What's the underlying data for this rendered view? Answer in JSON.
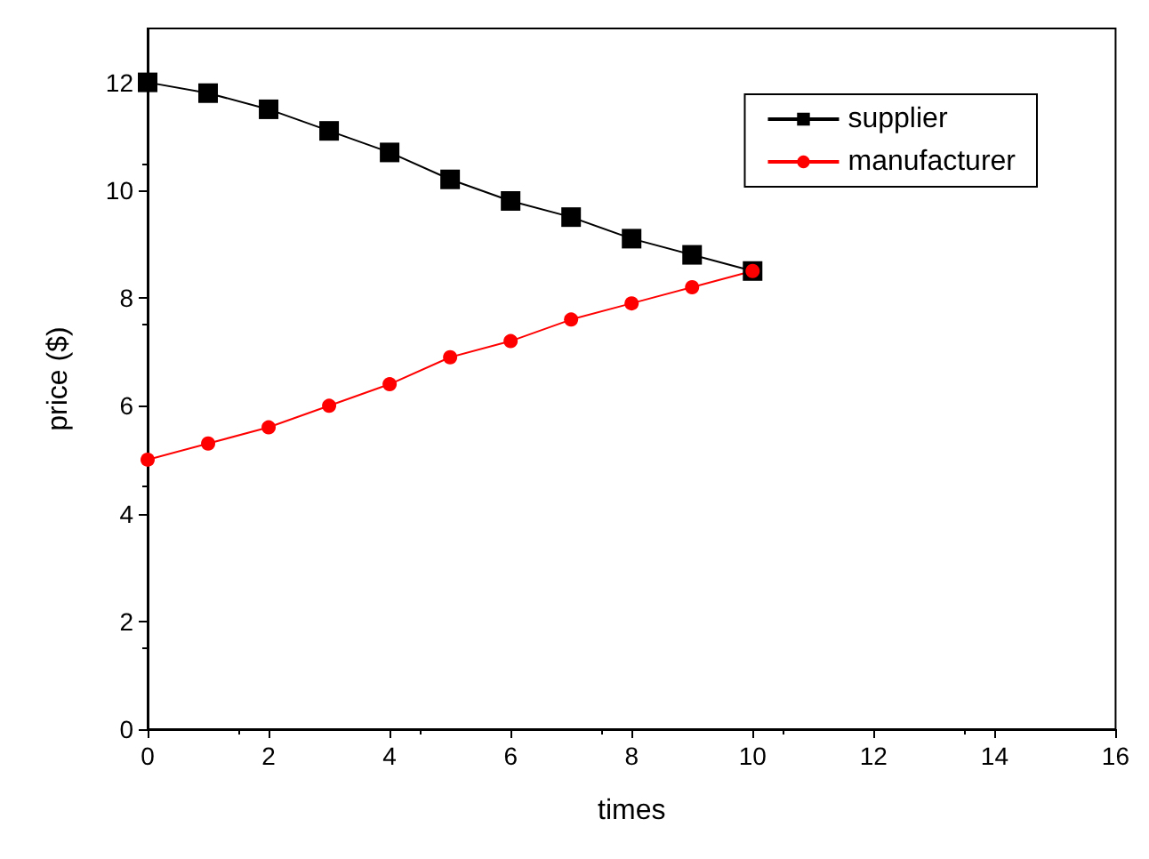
{
  "chart_data": {
    "type": "line",
    "xlabel": "times",
    "ylabel": "price ($)",
    "x": [
      0,
      1,
      2,
      3,
      4,
      5,
      6,
      7,
      8,
      9,
      10
    ],
    "series": [
      {
        "name": "supplier",
        "color": "#000000",
        "marker": "square",
        "values": [
          12,
          11.8,
          11.5,
          11.1,
          10.7,
          10.2,
          9.8,
          9.5,
          9.1,
          8.8,
          8.5
        ]
      },
      {
        "name": "manufacturer",
        "color": "#ff0000",
        "marker": "circle",
        "values": [
          5,
          5.3,
          5.6,
          6,
          6.4,
          6.9,
          7.2,
          7.6,
          7.9,
          8.2,
          8.5
        ]
      }
    ],
    "xlim": [
      0,
      16
    ],
    "xticks": [
      0,
      2,
      4,
      6,
      8,
      10,
      12,
      14,
      16
    ],
    "ylim": [
      0,
      13
    ],
    "yticks": [
      0,
      2,
      4,
      6,
      8,
      10,
      12
    ],
    "legend": "top right",
    "grid": false
  }
}
